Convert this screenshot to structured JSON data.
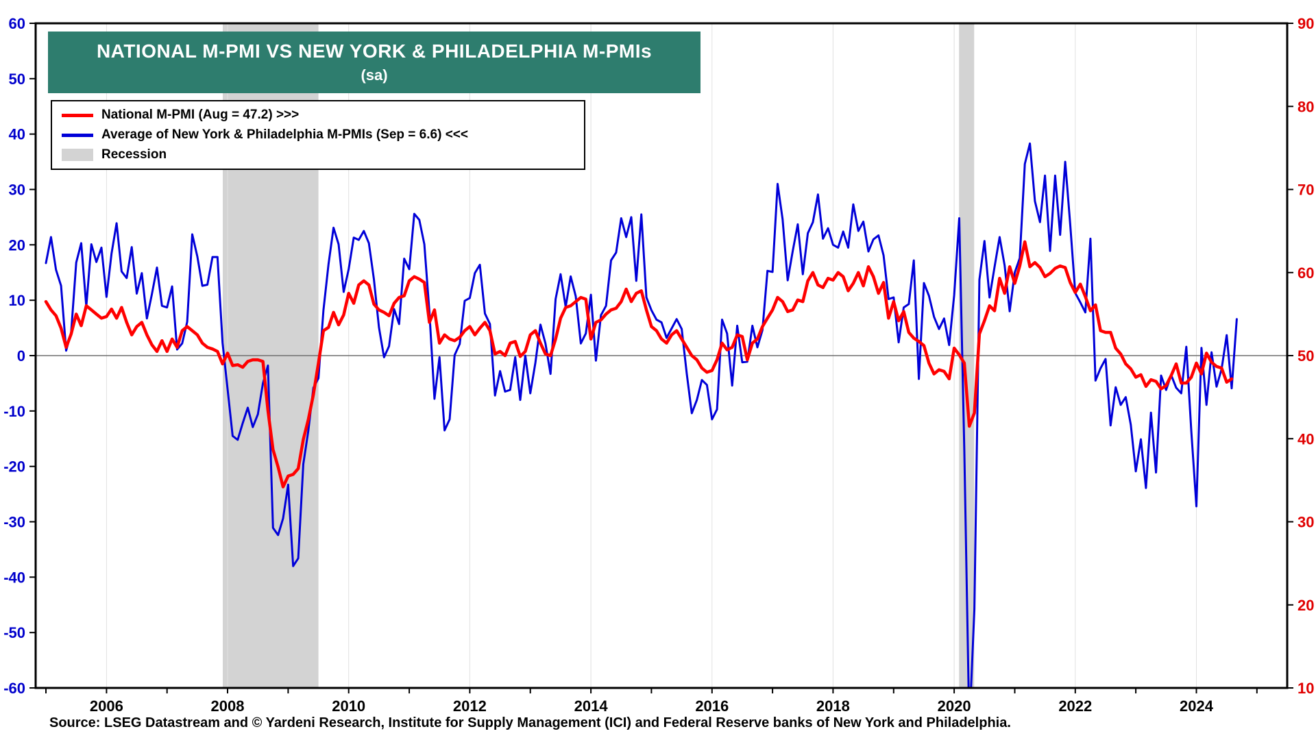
{
  "title": {
    "line1": "NATIONAL M-PMI VS NEW YORK & PHILADELPHIA M-PMIs",
    "line2": "(sa)"
  },
  "legend": {
    "items": [
      {
        "label": "National M-PMI (Aug = 47.2) >>>",
        "color": "#FF0000",
        "swatch": "line"
      },
      {
        "label": "Average of New York & Philadelphia M-PMIs (Sep = 6.6) <<<",
        "color": "#0000D8",
        "swatch": "line"
      },
      {
        "label": "Recession",
        "color": "#D3D3D3",
        "swatch": "box"
      }
    ]
  },
  "source": "Source: LSEG Datastream and © Yardeni Research, Institute for Supply Management (ICI) and Federal Reserve banks of New York and Philadelphia.",
  "colors": {
    "title_bg": "#2E7D6E",
    "recession": "#D3D3D3",
    "grid": "#E0E0E0",
    "zero_line": "#6E6E6E",
    "plot_border": "#000000",
    "background": "#FFFFFF"
  },
  "chart_data": {
    "type": "line",
    "title": "NATIONAL M-PMI VS NEW YORK & PHILADELPHIA M-PMIs (sa)",
    "x_unit": "year, monthly observations",
    "x_domain": [
      2004.83,
      2025.5
    ],
    "x_ticks": [
      2006,
      2008,
      2010,
      2012,
      2014,
      2016,
      2018,
      2020,
      2022,
      2024
    ],
    "left_axis": {
      "min": -60,
      "max": 60,
      "step": 10,
      "color": "#0000CC",
      "applies_to": "Average of New York & Philadelphia M-PMIs"
    },
    "right_axis": {
      "min": 10,
      "max": 90,
      "step": 10,
      "color": "#E00000",
      "applies_to": "National M-PMI"
    },
    "zero_line_left_value": 0,
    "grid": "vertical at even years",
    "legend_position": "top-left",
    "recession_bands": [
      [
        2007.92,
        2009.5
      ],
      [
        2020.08,
        2020.33
      ]
    ],
    "series": [
      {
        "name": "Average of New York & Philadelphia M-PMIs",
        "axis": "left",
        "color": "#0000D8",
        "width": 3,
        "x_start": 2005.0,
        "frequency": "monthly",
        "latest_label": "Sep = 6.6",
        "values": [
          16.7,
          21.4,
          15.5,
          12.6,
          0.9,
          4.2,
          16.8,
          20.3,
          8.9,
          20.1,
          16.9,
          19.5,
          10.6,
          18.4,
          23.9,
          15.2,
          14.0,
          19.6,
          11.2,
          14.9,
          6.7,
          11.1,
          15.9,
          9.0,
          8.7,
          12.5,
          1.1,
          2.2,
          6.1,
          21.9,
          17.9,
          12.6,
          12.8,
          17.8,
          17.8,
          2.3,
          -6.0,
          -14.5,
          -15.2,
          -12.2,
          -9.4,
          -12.9,
          -10.6,
          -5.0,
          -1.8,
          -31.1,
          -32.4,
          -29.4,
          -23.3,
          -38.0,
          -36.6,
          -19.6,
          -13.6,
          -5.8,
          -4.1,
          8.2,
          16.5,
          23.1,
          20.1,
          11.5,
          15.6,
          21.3,
          20.9,
          22.5,
          20.3,
          13.8,
          5.1,
          -0.3,
          1.7,
          8.4,
          5.7,
          17.5,
          15.6,
          25.6,
          24.5,
          20.1,
          7.9,
          -7.8,
          -0.3,
          -13.5,
          -11.5,
          0.1,
          2.1,
          9.9,
          10.4,
          14.9,
          16.4,
          7.6,
          5.7,
          -7.2,
          -2.8,
          -6.5,
          -6.2,
          -0.3,
          -8.0,
          0.0,
          -6.8,
          -1.3,
          5.6,
          2.2,
          -3.3,
          10.2,
          14.7,
          8.8,
          14.3,
          10.7,
          2.2,
          4.0,
          11.0,
          -0.9,
          7.3,
          9.0,
          17.2,
          18.6,
          24.8,
          21.4,
          25.0,
          13.5,
          25.5,
          10.5,
          8.2,
          6.5,
          6.0,
          3.2,
          4.9,
          6.6,
          4.8,
          -3.3,
          -10.4,
          -8.0,
          -4.4,
          -5.3,
          -11.5,
          -9.7,
          6.5,
          4.0,
          -5.4,
          5.4,
          -1.2,
          -1.1,
          5.4,
          1.5,
          4.6,
          15.3,
          15.1,
          31.0,
          24.6,
          13.6,
          18.9,
          23.7,
          14.7,
          22.1,
          24.1,
          29.1,
          21.1,
          23.0,
          20.0,
          19.5,
          22.4,
          19.5,
          27.3,
          22.5,
          24.2,
          18.8,
          21.0,
          21.7,
          18.1,
          10.2,
          10.5,
          2.4,
          8.7,
          9.3,
          17.2,
          -4.2,
          13.1,
          10.8,
          7.0,
          4.8,
          6.7,
          1.9,
          10.9,
          24.8,
          -17.1,
          -67.4,
          -45.8,
          13.7,
          20.7,
          10.5,
          16.0,
          21.4,
          16.3,
          8.0,
          15.0,
          17.6,
          34.6,
          38.3,
          27.9,
          24.1,
          32.5,
          18.9,
          32.5,
          21.8,
          35.0,
          23.7,
          11.3,
          9.6,
          7.8,
          21.1,
          -4.5,
          -2.3,
          -0.6,
          -12.6,
          -5.7,
          -8.9,
          -7.5,
          -12.5,
          -20.9,
          -15.1,
          -23.9,
          -10.3,
          -21.1,
          -3.6,
          -6.2,
          -3.5,
          -5.8,
          -6.8,
          1.6,
          -13.7,
          -27.2,
          1.4,
          -8.9,
          0.6,
          -5.6,
          -2.4,
          3.7,
          -5.9,
          6.6
        ]
      },
      {
        "name": "National M-PMI",
        "axis": "right",
        "color": "#FF0000",
        "width": 4.5,
        "x_start": 2005.0,
        "frequency": "monthly",
        "latest_label": "Aug = 47.2",
        "values": [
          56.5,
          55.5,
          54.8,
          53.3,
          51.0,
          52.6,
          55.0,
          53.6,
          56.0,
          55.5,
          55.0,
          54.5,
          54.7,
          55.6,
          54.5,
          55.8,
          54.0,
          52.5,
          53.5,
          54.0,
          52.5,
          51.3,
          50.5,
          51.8,
          50.5,
          52.0,
          51.0,
          53.0,
          53.5,
          53.0,
          52.5,
          51.5,
          51.0,
          50.8,
          50.5,
          49.0,
          50.3,
          48.8,
          48.9,
          48.6,
          49.3,
          49.5,
          49.5,
          49.3,
          43.4,
          38.7,
          36.6,
          34.2,
          35.5,
          35.7,
          36.4,
          39.9,
          42.3,
          45.3,
          49.1,
          53.0,
          53.4,
          55.2,
          53.7,
          54.9,
          57.5,
          56.3,
          58.5,
          59.0,
          58.5,
          56.2,
          55.5,
          55.2,
          54.8,
          56.3,
          57.0,
          57.2,
          59.0,
          59.5,
          59.2,
          58.8,
          54.0,
          55.5,
          51.5,
          52.5,
          52.0,
          51.8,
          52.2,
          53.0,
          53.5,
          52.5,
          53.3,
          54.0,
          53.0,
          50.2,
          50.5,
          50.0,
          51.5,
          51.7,
          49.9,
          50.5,
          52.5,
          53.0,
          51.5,
          50.2,
          50.0,
          52.0,
          54.5,
          55.8,
          56.0,
          56.5,
          57.0,
          56.8,
          52.0,
          54.0,
          54.3,
          55.0,
          55.5,
          55.7,
          56.5,
          58.0,
          56.5,
          57.5,
          57.8,
          55.5,
          53.5,
          53.0,
          52.0,
          51.5,
          52.5,
          53.0,
          52.0,
          51.0,
          50.0,
          49.5,
          48.5,
          48.0,
          48.2,
          49.5,
          51.5,
          50.7,
          51.0,
          52.5,
          52.3,
          49.5,
          51.5,
          52.0,
          53.5,
          54.5,
          55.5,
          57.0,
          56.5,
          55.3,
          55.5,
          56.7,
          56.5,
          59.0,
          60.0,
          58.5,
          58.2,
          59.3,
          59.1,
          60.0,
          59.5,
          57.8,
          58.7,
          60.0,
          58.4,
          60.7,
          59.5,
          57.5,
          58.8,
          54.5,
          56.5,
          54.2,
          55.3,
          52.8,
          52.1,
          51.7,
          51.2,
          49.1,
          47.8,
          48.3,
          48.1,
          47.2,
          50.9,
          50.1,
          49.1,
          41.5,
          43.1,
          52.6,
          54.2,
          56.0,
          55.4,
          59.3,
          57.5,
          60.7,
          58.7,
          60.8,
          63.7,
          60.7,
          61.2,
          60.6,
          59.5,
          59.9,
          60.5,
          60.8,
          60.6,
          58.8,
          57.6,
          58.6,
          57.1,
          55.4,
          56.1,
          53.0,
          52.8,
          52.8,
          50.9,
          50.2,
          49.0,
          48.4,
          47.4,
          47.7,
          46.3,
          47.1,
          46.9,
          46.0,
          46.4,
          47.6,
          49.0,
          46.7,
          46.7,
          47.4,
          49.1,
          47.8,
          50.3,
          49.2,
          48.7,
          48.5,
          46.8,
          47.2
        ]
      }
    ]
  }
}
